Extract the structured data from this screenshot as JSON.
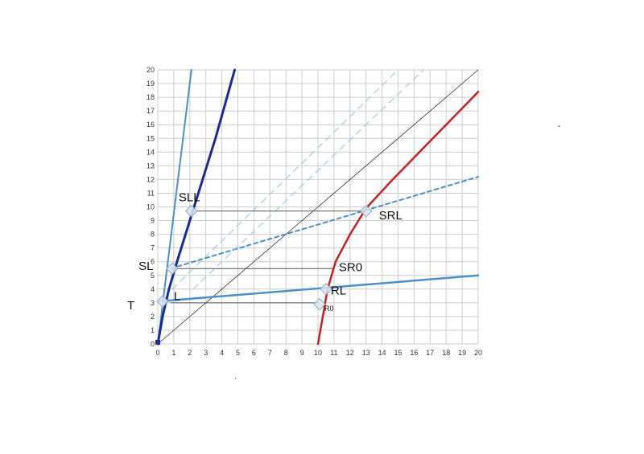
{
  "chart_data": {
    "type": "line",
    "xlim": [
      0,
      20
    ],
    "ylim": [
      0,
      20
    ],
    "grid": true,
    "x_ticks": [
      "0",
      "1",
      "2",
      "3",
      "4",
      "5",
      "6",
      "7",
      "8",
      "9",
      "10",
      "11",
      "12",
      "13",
      "14",
      "15",
      "16",
      "17",
      "18",
      "19",
      "20"
    ],
    "y_ticks": [
      "0",
      "1",
      "2",
      "3",
      "4",
      "5",
      "6",
      "7",
      "8",
      "9",
      "10",
      "11",
      "12",
      "13",
      "14",
      "15",
      "16",
      "17",
      "18",
      "19",
      "20"
    ],
    "ylabel": "T",
    "colors": {
      "steel_blue": "#4a90cc",
      "dark_blue": "#1a2a9c",
      "red": "#cc1f1f",
      "light_dashed": "#8fc1e3",
      "identity": "#333333",
      "connector": "#555555",
      "marker_fill": "#dde8f3",
      "marker_stroke": "#8aaac6",
      "grid": "#cccccc"
    },
    "series": [
      {
        "key": "steep-blue-line",
        "style": "solid",
        "color": "steel_blue",
        "width": 2,
        "x": [
          0,
          2.1
        ],
        "y": [
          0,
          20
        ]
      },
      {
        "key": "dark-blue-curve",
        "style": "solid",
        "color": "dark_blue",
        "width": 3,
        "x": [
          0,
          0.3,
          0.7,
          1.2,
          2.0,
          2.8,
          3.6,
          4.2,
          4.8
        ],
        "y": [
          0,
          2,
          4,
          6,
          9,
          12,
          15,
          17.5,
          20
        ]
      },
      {
        "key": "red-curve",
        "style": "solid",
        "color": "red",
        "width": 2.5,
        "x": [
          10,
          10.3,
          10.6,
          11.1,
          12.0,
          13.0,
          14.5,
          16.5,
          18.5,
          20
        ],
        "y": [
          0,
          2,
          4,
          6,
          8,
          9.9,
          11.8,
          14.2,
          16.6,
          18.4
        ]
      },
      {
        "key": "identity-line",
        "style": "solid",
        "color": "identity",
        "width": 0.8,
        "x": [
          0,
          20
        ],
        "y": [
          0,
          20
        ]
      },
      {
        "key": "lower-blue-line",
        "style": "solid",
        "color": "steel_blue",
        "width": 2.5,
        "x": [
          0,
          20
        ],
        "y": [
          3.1,
          5
        ]
      },
      {
        "key": "blue-dashed-line",
        "style": "dashed",
        "color": "steel_blue",
        "width": 2,
        "x": [
          0.8,
          20
        ],
        "y": [
          5.5,
          12.2
        ]
      },
      {
        "key": "light-dashed-line-1",
        "style": "dashed-light",
        "color": "light_dashed",
        "width": 1,
        "x": [
          0.9,
          15
        ],
        "y": [
          4,
          20
        ]
      },
      {
        "key": "light-dashed-line-2",
        "style": "dashed-light",
        "color": "light_dashed",
        "width": 1,
        "x": [
          2.2,
          16.6
        ],
        "y": [
          4,
          20
        ]
      },
      {
        "key": "connector-sll-srl",
        "style": "thin",
        "color": "connector",
        "width": 1,
        "x": [
          2.1,
          13.0
        ],
        "y": [
          9.7,
          9.7
        ]
      },
      {
        "key": "connector-sl-sr0",
        "style": "thin",
        "color": "connector",
        "width": 1,
        "x": [
          0.9,
          11.0
        ],
        "y": [
          5.5,
          5.5
        ]
      },
      {
        "key": "connector-l-r0",
        "style": "thin",
        "color": "connector",
        "width": 1,
        "x": [
          0.8,
          10.1
        ],
        "y": [
          3.0,
          3.0
        ]
      }
    ],
    "markers": [
      {
        "key": "sll",
        "x": 2.1,
        "y": 9.7
      },
      {
        "key": "srl",
        "x": 13.0,
        "y": 9.7
      },
      {
        "key": "sl",
        "x": 0.9,
        "y": 5.5
      },
      {
        "key": "rl",
        "x": 10.5,
        "y": 4.0
      },
      {
        "key": "l",
        "x": 0.3,
        "y": 3.1
      },
      {
        "key": "r0",
        "x": 10.1,
        "y": 2.9
      }
    ],
    "annotations": [
      {
        "key": "sll",
        "text": "SLL",
        "x": 1.3,
        "y": 10.4,
        "size": 15
      },
      {
        "key": "srl",
        "text": "SRL",
        "x": 13.8,
        "y": 9.1,
        "size": 15
      },
      {
        "key": "sl",
        "text": "SL",
        "x": -1.2,
        "y": 5.4,
        "size": 15
      },
      {
        "key": "sr0",
        "text": "SR0",
        "x": 11.3,
        "y": 5.3,
        "size": 15
      },
      {
        "key": "rl",
        "text": "RL",
        "x": 10.8,
        "y": 3.6,
        "size": 15
      },
      {
        "key": "l",
        "text": "L",
        "x": 1.0,
        "y": 3.2,
        "size": 15
      },
      {
        "key": "r0",
        "text": "R0",
        "x": 10.4,
        "y": 2.4,
        "size": 9
      }
    ]
  }
}
